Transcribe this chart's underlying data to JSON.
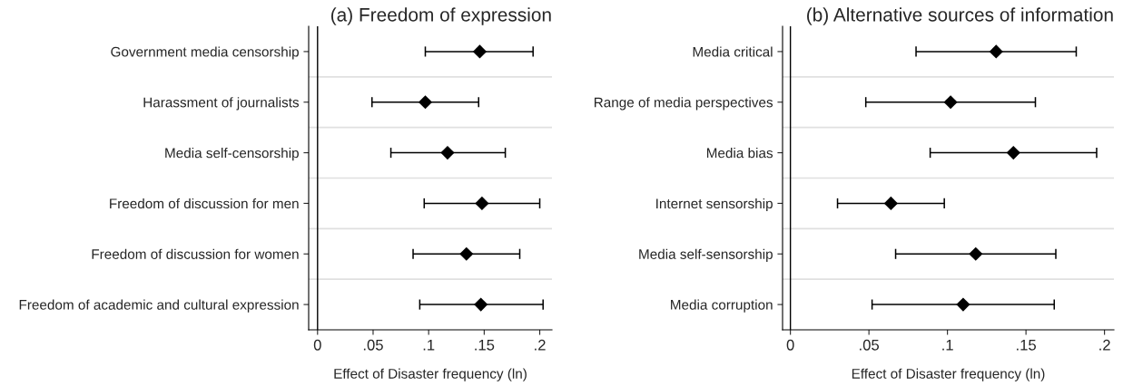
{
  "chart_data": [
    {
      "type": "scatter",
      "orientation": "horizontal",
      "title": "(a) Freedom of expression",
      "xlabel": "Effect of Disaster frequency (ln)",
      "categories": [
        "Government media censorship",
        "Harassment of journalists",
        "Media self-censorship",
        "Freedom of discussion for men",
        "Freedom of discussion for women",
        "Freedom of academic and cultural expression"
      ],
      "series": [
        {
          "color": "#000000",
          "values": [
            0.146,
            0.097,
            0.117,
            0.148,
            0.134,
            0.147
          ],
          "errors": [
            [
              0.097,
              0.194
            ],
            [
              0.049,
              0.145
            ],
            [
              0.066,
              0.169
            ],
            [
              0.096,
              0.2
            ],
            [
              0.086,
              0.182
            ],
            [
              0.092,
              0.203
            ]
          ]
        }
      ],
      "xlim": [
        -0.008,
        0.211
      ],
      "xticks": [
        {
          "value": 0,
          "label": "0"
        },
        {
          "value": 0.05,
          "label": ".05"
        },
        {
          "value": 0.1,
          "label": ".1"
        },
        {
          "value": 0.15,
          "label": ".15"
        },
        {
          "value": 0.2,
          "label": ".2"
        }
      ],
      "ref_lines": [
        {
          "axis": "x",
          "value": 0,
          "color": "#000000"
        }
      ],
      "grid": "y",
      "marker": "diamond",
      "legend": false
    },
    {
      "type": "scatter",
      "orientation": "horizontal",
      "title": "(b) Alternative sources of information",
      "xlabel": "Effect of Disaster frequency (ln)",
      "categories": [
        "Media critical",
        "Range of media perspectives",
        "Media bias",
        "Internet sensorship",
        "Media self-sensorship",
        "Media corruption"
      ],
      "series": [
        {
          "color": "#000000",
          "values": [
            0.131,
            0.102,
            0.142,
            0.064,
            0.118,
            0.11
          ],
          "errors": [
            [
              0.08,
              0.182
            ],
            [
              0.048,
              0.156
            ],
            [
              0.089,
              0.195
            ],
            [
              0.03,
              0.098
            ],
            [
              0.067,
              0.169
            ],
            [
              0.052,
              0.168
            ]
          ]
        }
      ],
      "xlim": [
        -0.005,
        0.206
      ],
      "xticks": [
        {
          "value": 0,
          "label": "0"
        },
        {
          "value": 0.05,
          "label": ".05"
        },
        {
          "value": 0.1,
          "label": ".1"
        },
        {
          "value": 0.15,
          "label": ".15"
        },
        {
          "value": 0.2,
          "label": ".2"
        }
      ],
      "ref_lines": [
        {
          "axis": "x",
          "value": 0,
          "color": "#000000"
        }
      ],
      "grid": "y",
      "marker": "diamond",
      "legend": false
    }
  ]
}
